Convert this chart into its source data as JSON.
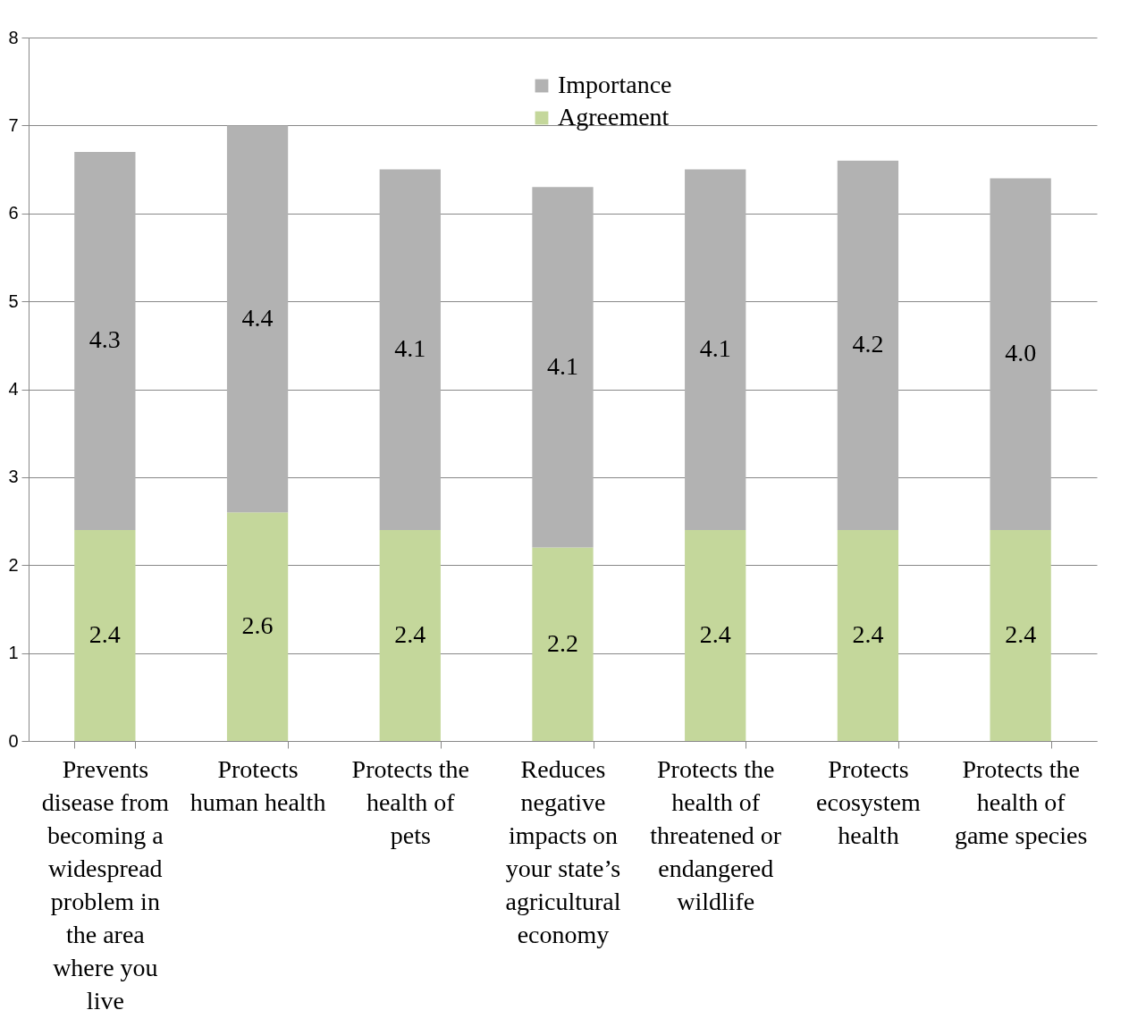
{
  "chart_data": {
    "type": "bar",
    "stacked": true,
    "categories": [
      "Prevents disease from becoming a widespread problem in the area where you live",
      "Protects human health",
      "Protects the health of pets",
      "Reduces negative impacts on your state’s agricultural economy",
      "Protects the health of threatened or endangered wildlife",
      "Protects ecosystem health",
      "Protects the health of game species"
    ],
    "series": [
      {
        "name": "Agreement",
        "color": "#c4d79b",
        "values": [
          2.4,
          2.6,
          2.4,
          2.2,
          2.4,
          2.4,
          2.4
        ],
        "value_labels": [
          "2.4",
          "2.6",
          "2.4",
          "2.2",
          "2.4",
          "2.4",
          "2.4"
        ]
      },
      {
        "name": "Importance",
        "color": "#b2b2b2",
        "values": [
          4.3,
          4.4,
          4.1,
          4.1,
          4.1,
          4.2,
          4.0
        ],
        "value_labels": [
          "4.3",
          "4.4",
          "4.1",
          "4.1",
          "4.1",
          "4.2",
          "4.0"
        ]
      }
    ],
    "ylim": [
      0,
      8
    ],
    "yticks": [
      0,
      1,
      2,
      3,
      4,
      5,
      6,
      7,
      8
    ],
    "grid": "y",
    "legend": "top"
  }
}
